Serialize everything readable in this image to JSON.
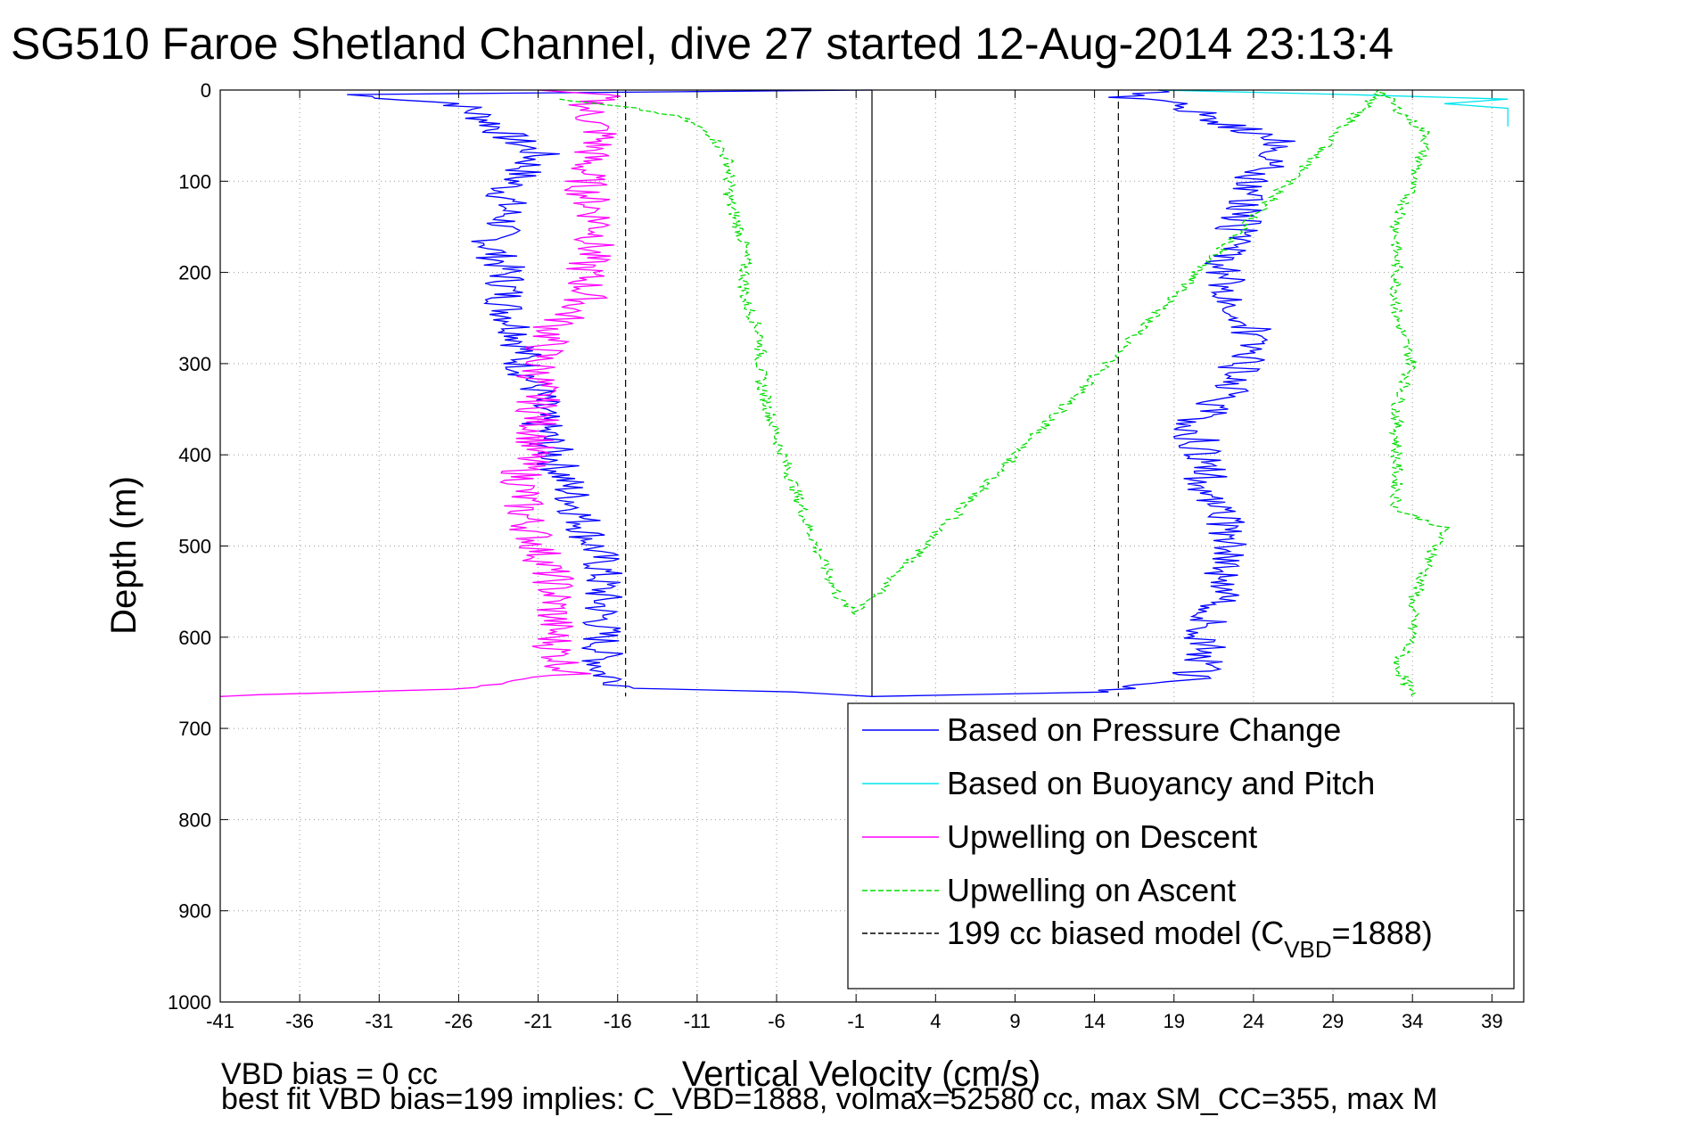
{
  "chart_data": {
    "type": "line",
    "title": "SG510 Faroe Shetland Channel, dive 27 started 12-Aug-2014 23:13:4",
    "xlabel": "Vertical Velocity (cm/s)",
    "ylabel": "Depth (m)",
    "xlim": [
      -41,
      41
    ],
    "ylim": [
      0,
      1000
    ],
    "y_reversed": true,
    "grid": true,
    "legend_position": "bottom-right",
    "xticks": [
      -41,
      -36,
      -31,
      -26,
      -21,
      -16,
      -11,
      -6,
      -1,
      4,
      9,
      14,
      19,
      24,
      29,
      34,
      39
    ],
    "yticks": [
      0,
      100,
      200,
      300,
      400,
      500,
      600,
      700,
      800,
      900,
      1000
    ],
    "reference_lines": {
      "vertical_solid_x": 0,
      "vertical_dashed_x": [
        -15.5,
        15.5
      ]
    },
    "series": [
      {
        "name": "Based on Pressure Change",
        "color": "#0000ff",
        "style": "solid",
        "points": [
          [
            0,
            0
          ],
          [
            -33,
            5
          ],
          [
            -26,
            15
          ],
          [
            -24,
            35
          ],
          [
            -23,
            50
          ],
          [
            -21,
            70
          ],
          [
            -22,
            90
          ],
          [
            -23,
            110
          ],
          [
            -23,
            140
          ],
          [
            -24,
            170
          ],
          [
            -23,
            200
          ],
          [
            -23,
            240
          ],
          [
            -22,
            270
          ],
          [
            -22,
            300
          ],
          [
            -21,
            330
          ],
          [
            -21,
            360
          ],
          [
            -20,
            400
          ],
          [
            -19,
            440
          ],
          [
            -18,
            480
          ],
          [
            -17,
            520
          ],
          [
            -17,
            560
          ],
          [
            -17,
            600
          ],
          [
            -17,
            640
          ],
          [
            -15,
            656
          ],
          [
            -5,
            660
          ],
          [
            0,
            665
          ],
          [
            0,
            665
          ],
          [
            15,
            660
          ],
          [
            20,
            645
          ],
          [
            21,
            625
          ],
          [
            21,
            605
          ],
          [
            21,
            585
          ],
          [
            22,
            560
          ],
          [
            22,
            530
          ],
          [
            23,
            500
          ],
          [
            22,
            470
          ],
          [
            21,
            440
          ],
          [
            21,
            400
          ],
          [
            20,
            370
          ],
          [
            22,
            340
          ],
          [
            23,
            310
          ],
          [
            24,
            270
          ],
          [
            23,
            240
          ],
          [
            22,
            200
          ],
          [
            23,
            150
          ],
          [
            24,
            100
          ],
          [
            26,
            60
          ],
          [
            22,
            35
          ],
          [
            19,
            15
          ],
          [
            16,
            8
          ],
          [
            18,
            0
          ]
        ]
      },
      {
        "name": "Based on Buoyancy and Pitch",
        "color": "#00e5ee",
        "style": "solid",
        "points": [
          [
            18,
            0
          ],
          [
            30,
            5
          ],
          [
            40,
            10
          ],
          [
            36,
            15
          ],
          [
            40,
            20
          ],
          [
            40,
            40
          ]
        ]
      },
      {
        "name": "Upwelling on Descent",
        "color": "#ff00ff",
        "style": "solid",
        "points": [
          [
            -21,
            0
          ],
          [
            -17,
            5
          ],
          [
            -18,
            20
          ],
          [
            -17,
            50
          ],
          [
            -18,
            80
          ],
          [
            -18,
            110
          ],
          [
            -17,
            150
          ],
          [
            -18,
            190
          ],
          [
            -18,
            230
          ],
          [
            -20,
            260
          ],
          [
            -21,
            300
          ],
          [
            -21,
            340
          ],
          [
            -21,
            380
          ],
          [
            -22,
            420
          ],
          [
            -22,
            460
          ],
          [
            -21,
            500
          ],
          [
            -20,
            540
          ],
          [
            -20,
            580
          ],
          [
            -20,
            610
          ],
          [
            -19,
            640
          ],
          [
            -24,
            655
          ],
          [
            -41,
            665
          ]
        ]
      },
      {
        "name": "Upwelling on Ascent",
        "color": "#00dd00",
        "style": "dashed",
        "points": [
          [
            -20,
            10
          ],
          [
            -15,
            20
          ],
          [
            -12,
            30
          ],
          [
            -10,
            50
          ],
          [
            -9,
            80
          ],
          [
            -9,
            120
          ],
          [
            -8,
            170
          ],
          [
            -8,
            230
          ],
          [
            -7,
            270
          ],
          [
            -7,
            320
          ],
          [
            -6,
            380
          ],
          [
            -5,
            430
          ],
          [
            -4,
            480
          ],
          [
            -3,
            520
          ],
          [
            -2,
            560
          ],
          [
            -1,
            575
          ],
          [
            32,
            0
          ],
          [
            33,
            20
          ],
          [
            35,
            50
          ],
          [
            34,
            100
          ],
          [
            33,
            150
          ],
          [
            33,
            200
          ],
          [
            33,
            250
          ],
          [
            34,
            300
          ],
          [
            33,
            350
          ],
          [
            33,
            400
          ],
          [
            33,
            430
          ],
          [
            33,
            460
          ],
          [
            36,
            480
          ],
          [
            35,
            520
          ],
          [
            34,
            560
          ],
          [
            34,
            600
          ],
          [
            33,
            630
          ],
          [
            34,
            665
          ]
        ]
      },
      {
        "name": "199 cc biased model (C",
        "name_sub": "VBD",
        "name_tail": "=1888)",
        "color": "#000000",
        "style": "dashed"
      }
    ],
    "footer": {
      "line1": "VBD bias = 0 cc",
      "line2": "best fit VBD bias=199 implies: C_VBD=1888, volmax=52580 cc, max SM_CC=355, max M"
    }
  }
}
